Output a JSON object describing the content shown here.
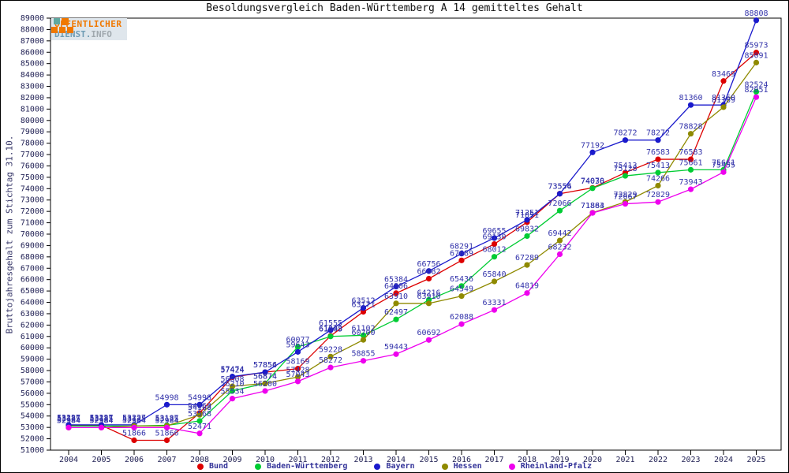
{
  "title": "Besoldungsvergleich Baden-Württemberg A 14 gemitteltes Gehalt",
  "ylabel": "Bruttojahresgehalt zum Stichtag 31.10.",
  "logo": {
    "line1": "ÖFFENTLICHER",
    "line2a": "DIENST.",
    "line2b": "INFO"
  },
  "colors": {
    "bund": "#dd0000",
    "baden_wuerttemberg": "#00cc33",
    "bayern": "#1a1acc",
    "hessen": "#8f8a00",
    "rheinland_pfalz": "#ee00ee",
    "value_label": "#3333aa",
    "axis_text": "#222255"
  },
  "chart_data": {
    "type": "line",
    "title": "Besoldungsvergleich Baden-Württemberg A 14 gemitteltes Gehalt",
    "xlabel": "",
    "ylabel": "Bruttojahresgehalt zum Stichtag 31.10.",
    "ylim": [
      51000,
      89000
    ],
    "ytick_step": 1000,
    "grid": false,
    "legend_position": "bottom",
    "point_labels": true,
    "x": [
      2004,
      2005,
      2006,
      2007,
      2008,
      2009,
      2010,
      2011,
      2012,
      2013,
      2014,
      2015,
      2016,
      2017,
      2018,
      2019,
      2020,
      2021,
      2022,
      2023,
      2024,
      2025
    ],
    "series": [
      {
        "name": "Bund",
        "color": "#dd0000",
        "values": [
          53187,
          53187,
          51866,
          51866,
          54263,
          57424,
          57854,
          58169,
          61048,
          63171,
          64806,
          66082,
          67689,
          69130,
          71051,
          73556,
          74070,
          75413,
          76583,
          76583,
          83469,
          85973
        ]
      },
      {
        "name": "Baden-Württemberg",
        "color": "#00cc33",
        "values": [
          53125,
          53125,
          53125,
          53187,
          53568,
          56210,
          56874,
          60077,
          61003,
          61102,
          62497,
          64216,
          65436,
          68012,
          69832,
          72066,
          74036,
          75128,
          75413,
          75661,
          75661,
          82524
        ]
      },
      {
        "name": "Bayern",
        "color": "#1a1acc",
        "values": [
          53227,
          53227,
          53227,
          54998,
          54998,
          57474,
          57856,
          59643,
          61555,
          63512,
          65384,
          66756,
          68291,
          69655,
          71251,
          73554,
          77192,
          78272,
          78272,
          81360,
          81360,
          88808
        ]
      },
      {
        "name": "Hessen",
        "color": "#8f8a00",
        "values": [
          52984,
          52984,
          53125,
          53125,
          54108,
          56608,
          56874,
          57428,
          59228,
          60700,
          63910,
          63910,
          64549,
          65840,
          67289,
          69442,
          71883,
          72829,
          74266,
          78828,
          81169,
          85091
        ]
      },
      {
        "name": "Rheinland-Pfalz",
        "color": "#ee00ee",
        "values": [
          52984,
          52984,
          52984,
          52984,
          52471,
          55534,
          56200,
          57043,
          58272,
          58855,
          59443,
          60692,
          62088,
          63331,
          64819,
          68232,
          71864,
          72667,
          72829,
          73943,
          75455,
          82051
        ]
      }
    ]
  }
}
